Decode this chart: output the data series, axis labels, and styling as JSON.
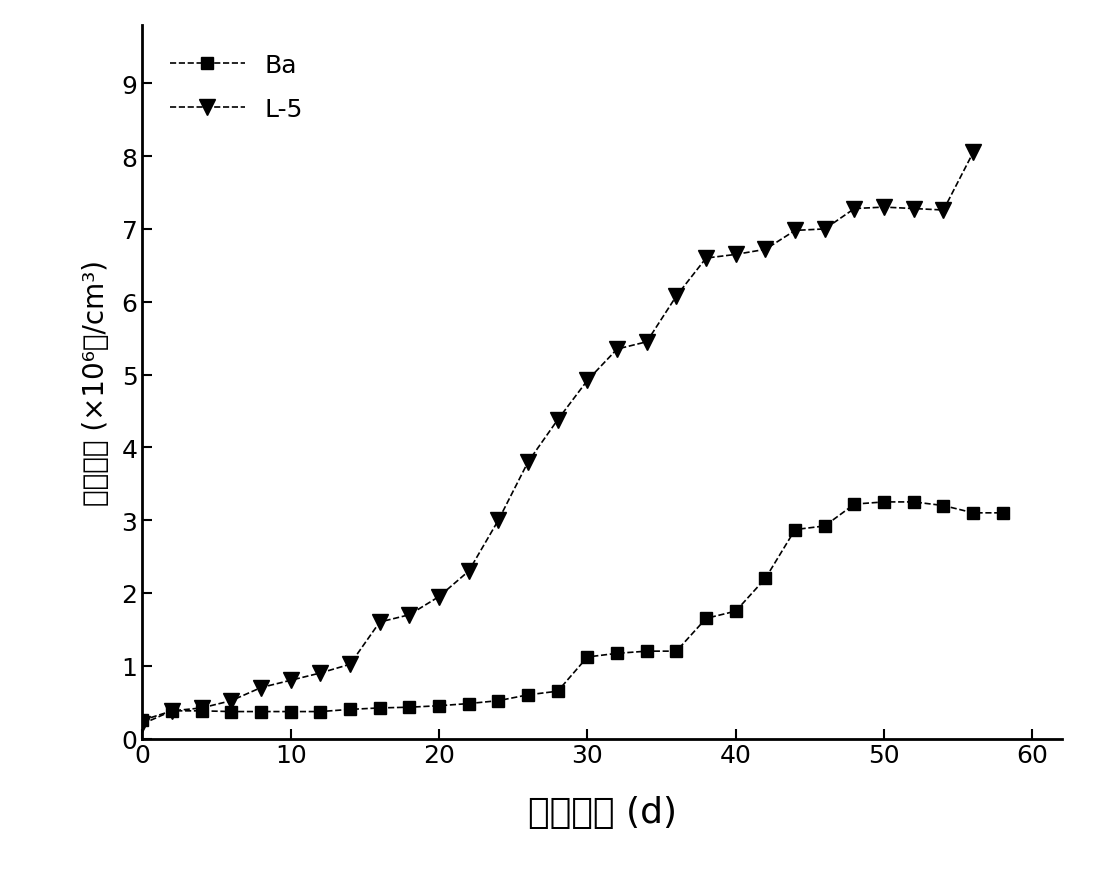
{
  "Ba_x": [
    0,
    2,
    4,
    6,
    8,
    10,
    12,
    14,
    16,
    18,
    20,
    22,
    24,
    26,
    28,
    30,
    32,
    34,
    36,
    38,
    40,
    42,
    44,
    46,
    48,
    50,
    52,
    54,
    56,
    58
  ],
  "Ba_y": [
    0.25,
    0.38,
    0.38,
    0.37,
    0.37,
    0.37,
    0.37,
    0.4,
    0.42,
    0.43,
    0.45,
    0.48,
    0.52,
    0.6,
    0.65,
    1.12,
    1.17,
    1.2,
    1.2,
    1.65,
    1.75,
    2.2,
    2.87,
    2.92,
    3.22,
    3.25,
    3.25,
    3.2,
    3.1,
    3.1
  ],
  "L5_x": [
    0,
    2,
    4,
    6,
    8,
    10,
    12,
    14,
    16,
    18,
    20,
    22,
    24,
    26,
    28,
    30,
    32,
    34,
    36,
    38,
    40,
    42,
    44,
    46,
    48,
    50,
    52,
    54,
    56
  ],
  "L5_y": [
    0.2,
    0.38,
    0.42,
    0.52,
    0.7,
    0.8,
    0.9,
    1.02,
    1.6,
    1.7,
    1.95,
    2.3,
    3.0,
    3.8,
    4.38,
    4.92,
    5.35,
    5.45,
    6.08,
    6.6,
    6.65,
    6.72,
    6.98,
    7.0,
    7.28,
    7.3,
    7.28,
    7.26,
    8.05
  ],
  "xlabel": "培展时间 (d)",
  "ylabel": "细胞数量 (×10⁶个/cm³)",
  "xlim": [
    0,
    62
  ],
  "ylim": [
    0,
    9.8
  ],
  "yticks": [
    0,
    1,
    2,
    3,
    4,
    5,
    6,
    7,
    8,
    9
  ],
  "xticks": [
    0,
    10,
    20,
    30,
    40,
    50,
    60
  ],
  "legend_Ba": "Ba",
  "legend_L5": "L-5",
  "color": "#000000",
  "xlabel_fontsize": 26,
  "ylabel_fontsize": 20,
  "tick_fontsize": 18,
  "legend_fontsize": 18,
  "marker_size_sq": 9,
  "marker_size_tri": 11,
  "linewidth": 1.2
}
